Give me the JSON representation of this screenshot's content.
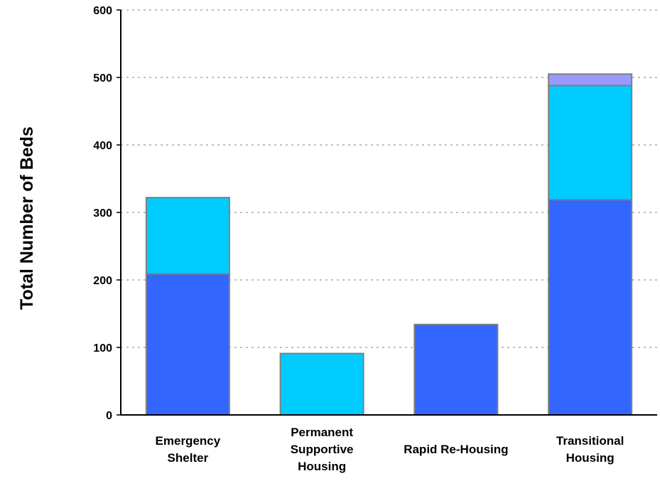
{
  "chart_data": {
    "type": "bar",
    "stacked": true,
    "title": "",
    "xlabel": "",
    "ylabel": "Total Number of Beds",
    "ylim": [
      0,
      600
    ],
    "yticks": [
      "0",
      "100",
      "200",
      "300",
      "400",
      "500",
      "600"
    ],
    "grid": true,
    "categories": [
      [
        "Emergency",
        "Shelter"
      ],
      [
        "Permanent",
        "Supportive",
        "Housing"
      ],
      [
        "Rapid Re-Housing"
      ],
      [
        "Transitional",
        "Housing"
      ]
    ],
    "series": [
      {
        "color": "#3366ff",
        "values": [
          209,
          0,
          134,
          319
        ]
      },
      {
        "color": "#00ccff",
        "values": [
          113,
          91,
          0,
          169
        ]
      },
      {
        "color": "#9999ff",
        "values": [
          0,
          0,
          0,
          17
        ]
      }
    ],
    "bar_edge_color": "#808080",
    "grid_color": "#808080"
  }
}
